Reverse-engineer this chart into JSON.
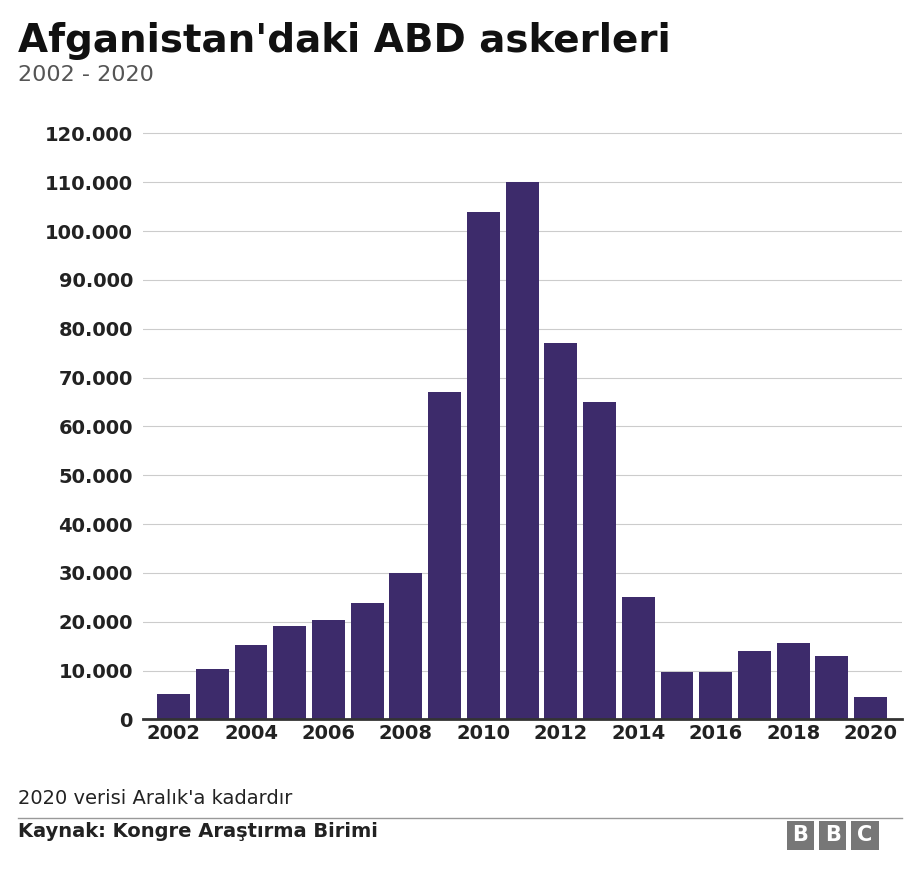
{
  "title": "Afganistan'daki ABD askerleri",
  "subtitle": "2002 - 2020",
  "years": [
    2002,
    2003,
    2004,
    2005,
    2006,
    2007,
    2008,
    2009,
    2010,
    2011,
    2012,
    2013,
    2014,
    2015,
    2016,
    2017,
    2018,
    2019,
    2020
  ],
  "values": [
    5200,
    10400,
    15200,
    19100,
    20400,
    23774,
    30000,
    67000,
    104000,
    110000,
    77000,
    65000,
    25000,
    9800,
    9800,
    14000,
    15700,
    13000,
    4500
  ],
  "bar_color": "#3d2b6b",
  "background_color": "#ffffff",
  "ytick_labels": [
    "0",
    "10.000",
    "20.000",
    "30.000",
    "40.000",
    "50.000",
    "60.000",
    "70.000",
    "80.000",
    "90.000",
    "100.000",
    "110.000",
    "120.000"
  ],
  "ytick_values": [
    0,
    10000,
    20000,
    30000,
    40000,
    50000,
    60000,
    70000,
    80000,
    90000,
    100000,
    110000,
    120000
  ],
  "xtick_labels": [
    "2002",
    "2004",
    "2006",
    "2008",
    "2010",
    "2012",
    "2014",
    "2016",
    "2018",
    "2020"
  ],
  "xtick_values": [
    2002,
    2004,
    2006,
    2008,
    2010,
    2012,
    2014,
    2016,
    2018,
    2020
  ],
  "ylim": [
    0,
    125000
  ],
  "footnote": "2020 verisi Aralık'a kadardır",
  "source": "Kaynak: Kongre Araştırma Birimi",
  "bbc_text": "BBC",
  "title_fontsize": 28,
  "subtitle_fontsize": 16,
  "tick_fontsize": 14,
  "footnote_fontsize": 14,
  "source_fontsize": 14,
  "grid_color": "#cccccc",
  "text_color": "#222222",
  "spine_color": "#333333"
}
